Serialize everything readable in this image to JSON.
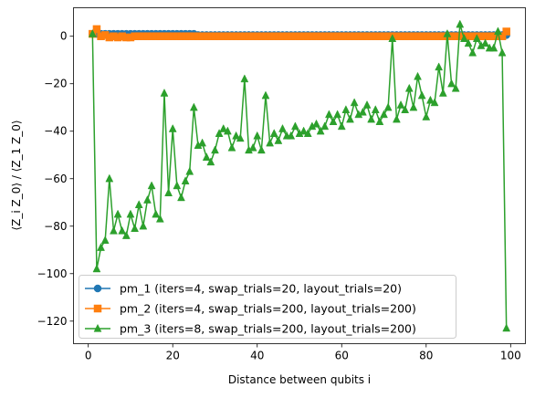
{
  "chart_data": {
    "type": "line",
    "xlabel": "Distance between qubits i",
    "ylabel": "⟨Z_i Z_0⟩ / ⟨Z_1 Z_0⟩",
    "xlim": [
      -3.5,
      103.5
    ],
    "ylim": [
      -129.5,
      12
    ],
    "xticks": [
      0,
      20,
      40,
      60,
      80,
      100
    ],
    "yticks": [
      0,
      -20,
      -40,
      -60,
      -80,
      -100,
      -120
    ],
    "grid": false,
    "legend_position": "lower-left",
    "series": [
      {
        "name": "pm_1 (iters=4, swap_trials=20, layout_trials=20)",
        "color": "#1f77b4",
        "marker": "circle",
        "x": [
          1,
          2,
          3,
          4,
          5,
          6,
          7,
          8,
          9,
          10,
          11,
          12,
          13,
          14,
          15,
          16,
          17,
          18,
          19,
          20,
          21,
          22,
          23,
          24,
          25,
          26,
          27,
          28,
          29,
          30,
          31,
          32,
          33,
          34,
          35,
          36,
          37,
          38,
          39,
          40,
          41,
          42,
          43,
          44,
          45,
          46,
          47,
          48,
          49,
          50,
          51,
          52,
          53,
          54,
          55,
          56,
          57,
          58,
          59,
          60,
          61,
          62,
          63,
          64,
          65,
          66,
          67,
          68,
          69,
          70,
          71,
          72,
          73,
          74,
          75,
          76,
          77,
          78,
          79,
          80,
          81,
          82,
          83,
          84,
          85,
          86,
          87,
          88,
          89,
          90,
          91,
          92,
          93,
          94,
          95,
          96,
          97,
          98,
          99
        ],
        "y": [
          1,
          1,
          1,
          1,
          1,
          1,
          1,
          1,
          1,
          1,
          1,
          1,
          1,
          1,
          1,
          1,
          1,
          1,
          1,
          1,
          1,
          1,
          1,
          1,
          1,
          0.5,
          0.5,
          0.5,
          0.5,
          0.5,
          0.5,
          0.5,
          0.5,
          0.5,
          0.5,
          0.5,
          0.5,
          0.5,
          0.5,
          0.5,
          0.5,
          0.5,
          0.5,
          0.5,
          0.5,
          0.5,
          0.5,
          0.5,
          0.5,
          0.5,
          0.5,
          0.5,
          0.5,
          0.5,
          0.5,
          0.5,
          0.5,
          0.5,
          0.5,
          0.5,
          0.5,
          0.5,
          0.5,
          0.5,
          0.5,
          0.5,
          0.5,
          0.5,
          0.5,
          0.5,
          0.5,
          0.5,
          0.5,
          0.5,
          0.5,
          0.5,
          0.5,
          0.5,
          0.5,
          0.5,
          0.5,
          0.5,
          0.5,
          0.5,
          0.5,
          0.5,
          0.5,
          0.5,
          0.5,
          0.5,
          0.5,
          0.5,
          0.5,
          0.5,
          0.5,
          0.5,
          0.5,
          0.5,
          0.5
        ]
      },
      {
        "name": "pm_2 (iters=4, swap_trials=200, layout_trials=200)",
        "color": "#ff7f0e",
        "marker": "square",
        "x": [
          1,
          2,
          3,
          4,
          5,
          6,
          7,
          8,
          9,
          10,
          11,
          12,
          13,
          14,
          15,
          16,
          17,
          18,
          19,
          20,
          21,
          22,
          23,
          24,
          25,
          26,
          27,
          28,
          29,
          30,
          31,
          32,
          33,
          34,
          35,
          36,
          37,
          38,
          39,
          40,
          41,
          42,
          43,
          44,
          45,
          46,
          47,
          48,
          49,
          50,
          51,
          52,
          53,
          54,
          55,
          56,
          57,
          58,
          59,
          60,
          61,
          62,
          63,
          64,
          65,
          66,
          67,
          68,
          69,
          70,
          71,
          72,
          73,
          74,
          75,
          76,
          77,
          78,
          79,
          80,
          81,
          82,
          83,
          84,
          85,
          86,
          87,
          88,
          89,
          90,
          91,
          92,
          93,
          94,
          95,
          96,
          97,
          98,
          99
        ],
        "y": [
          1,
          3,
          0,
          0.5,
          -0.5,
          0,
          -0.5,
          0,
          -0.5,
          -0.5,
          0,
          0,
          0,
          0,
          0,
          0,
          0,
          0,
          0,
          0,
          0,
          0,
          0,
          0,
          0,
          0,
          0,
          0,
          0,
          0,
          0,
          0,
          0,
          0,
          0,
          0,
          0,
          0,
          0,
          0,
          0,
          0,
          0,
          0,
          0,
          0,
          0,
          0,
          0,
          0,
          0,
          0,
          0,
          0,
          0,
          0,
          0,
          0,
          0,
          0,
          0,
          0,
          0,
          0,
          0,
          0,
          0,
          0,
          0,
          0,
          0,
          0,
          0,
          0,
          0,
          0,
          0,
          0,
          0,
          0,
          0,
          0,
          0,
          0,
          0,
          0,
          0,
          0,
          0,
          0,
          0,
          0,
          0,
          0,
          0,
          0,
          0,
          0,
          2
        ]
      },
      {
        "name": "pm_3 (iters=8, swap_trials=200, layout_trials=200)",
        "color": "#2ca02c",
        "marker": "triangle",
        "x": [
          1,
          2,
          3,
          4,
          5,
          6,
          7,
          8,
          9,
          10,
          11,
          12,
          13,
          14,
          15,
          16,
          17,
          18,
          19,
          20,
          21,
          22,
          23,
          24,
          25,
          26,
          27,
          28,
          29,
          30,
          31,
          32,
          33,
          34,
          35,
          36,
          37,
          38,
          39,
          40,
          41,
          42,
          43,
          44,
          45,
          46,
          47,
          48,
          49,
          50,
          51,
          52,
          53,
          54,
          55,
          56,
          57,
          58,
          59,
          60,
          61,
          62,
          63,
          64,
          65,
          66,
          67,
          68,
          69,
          70,
          71,
          72,
          73,
          74,
          75,
          76,
          77,
          78,
          79,
          80,
          81,
          82,
          83,
          84,
          85,
          86,
          87,
          88,
          89,
          90,
          91,
          92,
          93,
          94,
          95,
          96,
          97,
          98,
          99
        ],
        "y": [
          1,
          -98,
          -89,
          -86,
          -60,
          -82,
          -75,
          -82,
          -84,
          -75,
          -81,
          -71,
          -80,
          -69,
          -63,
          -75,
          -77,
          -24,
          -66,
          -39,
          -63,
          -68,
          -61,
          -57,
          -30,
          -46,
          -45,
          -51,
          -53,
          -48,
          -41,
          -39,
          -40,
          -47,
          -42,
          -43,
          -18,
          -48,
          -47,
          -42,
          -48,
          -25,
          -45,
          -41,
          -44,
          -39,
          -42,
          -42,
          -38,
          -41,
          -40,
          -41,
          -38,
          -37,
          -40,
          -38,
          -33,
          -36,
          -33,
          -38,
          -31,
          -35,
          -28,
          -33,
          -32,
          -29,
          -35,
          -31,
          -36,
          -33,
          -30,
          -1,
          -35,
          -29,
          -31,
          -22,
          -30,
          -17,
          -25,
          -34,
          -27,
          -28,
          -13,
          -24,
          1,
          -20,
          -22,
          5,
          -1,
          -3,
          -7,
          -1,
          -4,
          -3,
          -5,
          -5,
          2,
          -7,
          -123
        ]
      }
    ]
  }
}
